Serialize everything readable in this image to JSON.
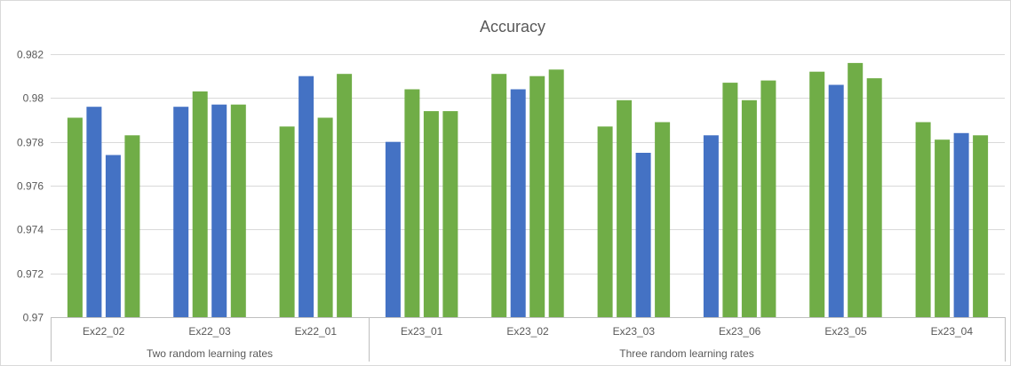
{
  "chart_data": {
    "type": "bar",
    "title": "Accuracy",
    "xlabel": "",
    "ylabel": "",
    "ylim": [
      0.97,
      0.982
    ],
    "ytick_step": 0.002,
    "ytick_labels": [
      "0.97",
      "0.972",
      "0.974",
      "0.976",
      "0.978",
      "0.98",
      "0.982"
    ],
    "grid": true,
    "legend": "none",
    "colors": {
      "green": "#70ad47",
      "blue": "#4472c4",
      "grid": "#d9d9d9",
      "text": "#595959"
    },
    "groups": [
      {
        "label": "Two random learning rates",
        "categories": [
          "Ex22_02",
          "Ex22_03",
          "Ex22_01"
        ]
      },
      {
        "label": "Three random learning rates",
        "categories": [
          "Ex23_01",
          "Ex23_02",
          "Ex23_03",
          "Ex23_06",
          "Ex23_05",
          "Ex23_04"
        ]
      }
    ],
    "categories": [
      "Ex22_02",
      "Ex22_03",
      "Ex22_01",
      "Ex23_01",
      "Ex23_02",
      "Ex23_03",
      "Ex23_06",
      "Ex23_05",
      "Ex23_04"
    ],
    "bars": [
      {
        "values": [
          0.9791,
          0.9796,
          0.9774,
          0.9783
        ],
        "colors": [
          "green",
          "blue",
          "blue",
          "green"
        ]
      },
      {
        "values": [
          0.9796,
          0.9803,
          0.9797,
          0.9797
        ],
        "colors": [
          "blue",
          "green",
          "blue",
          "green"
        ]
      },
      {
        "values": [
          0.9787,
          0.981,
          0.9791,
          0.9811
        ],
        "colors": [
          "green",
          "blue",
          "green",
          "green"
        ]
      },
      {
        "values": [
          0.978,
          0.9804,
          0.9794,
          0.9794
        ],
        "colors": [
          "blue",
          "green",
          "green",
          "green"
        ]
      },
      {
        "values": [
          0.9811,
          0.9804,
          0.981,
          0.9813
        ],
        "colors": [
          "green",
          "blue",
          "green",
          "green"
        ]
      },
      {
        "values": [
          0.9787,
          0.9799,
          0.9775,
          0.9789
        ],
        "colors": [
          "green",
          "green",
          "blue",
          "green"
        ]
      },
      {
        "values": [
          0.9783,
          0.9807,
          0.9799,
          0.9808
        ],
        "colors": [
          "blue",
          "green",
          "green",
          "green"
        ]
      },
      {
        "values": [
          0.9812,
          0.9806,
          0.9816,
          0.9809
        ],
        "colors": [
          "green",
          "blue",
          "green",
          "green"
        ]
      },
      {
        "values": [
          0.9789,
          0.9781,
          0.9784,
          0.9783
        ],
        "colors": [
          "green",
          "green",
          "blue",
          "green"
        ]
      }
    ]
  }
}
